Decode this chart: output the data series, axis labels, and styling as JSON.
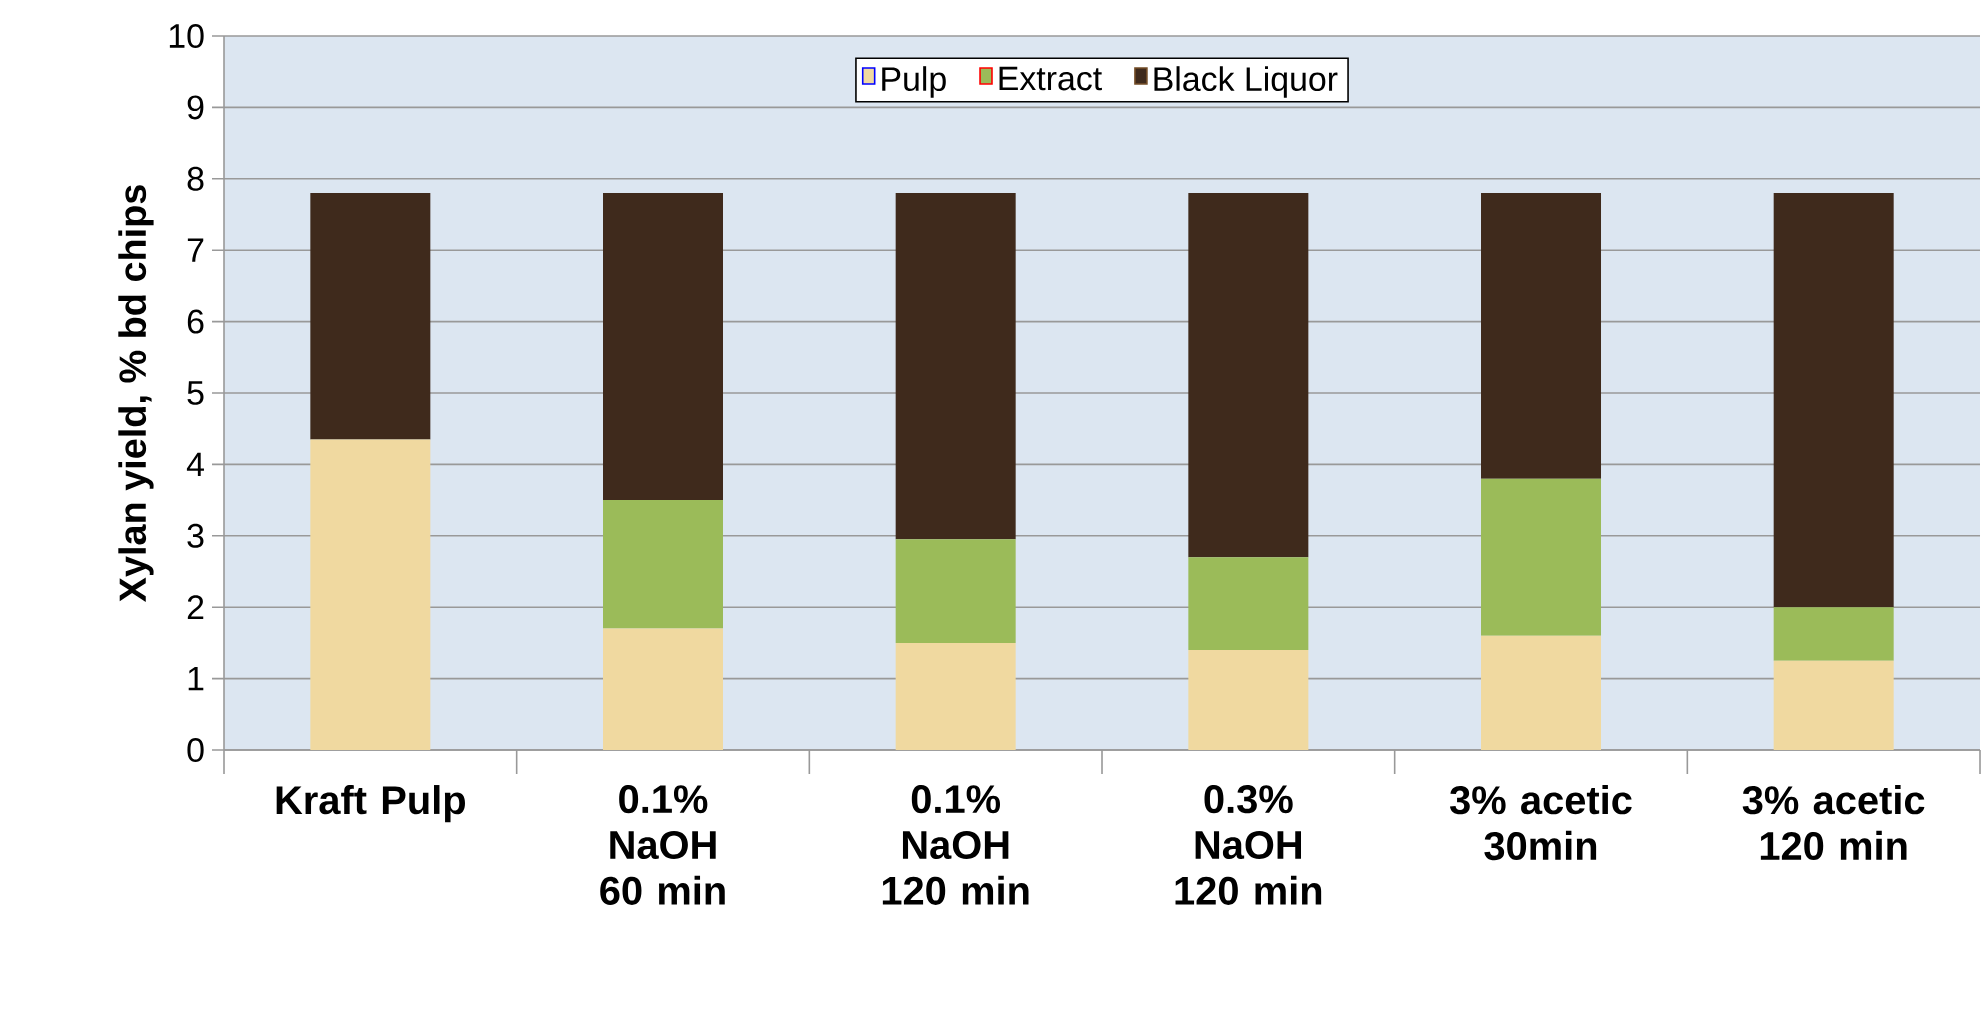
{
  "chart_data": {
    "type": "bar",
    "stacked": true,
    "ylabel": "Xylan yield, % bd chips",
    "categories": [
      "Kraft Pulp",
      "0.1% NaOH 60 min",
      "0.1% NaOH 120 min",
      "0.3% NaOH 120 min",
      "3% acetic 30min",
      "3% acetic 120 min"
    ],
    "series": [
      {
        "name": "Pulp",
        "color": "#f0d9a0",
        "values": [
          4.35,
          1.7,
          1.5,
          1.4,
          1.6,
          1.25
        ]
      },
      {
        "name": "Extract",
        "color": "#9bbb59",
        "values": [
          0,
          1.8,
          1.45,
          1.3,
          2.2,
          0.75
        ]
      },
      {
        "name": "Black Liquor",
        "color": "#3f2a1c",
        "values": [
          3.45,
          4.3,
          4.85,
          5.1,
          4.0,
          5.8
        ]
      }
    ],
    "ylim": [
      0,
      10
    ],
    "yticks": [
      0,
      1,
      2,
      3,
      4,
      5,
      6,
      7,
      8,
      9,
      10
    ],
    "grid": "y",
    "legend": "top"
  }
}
